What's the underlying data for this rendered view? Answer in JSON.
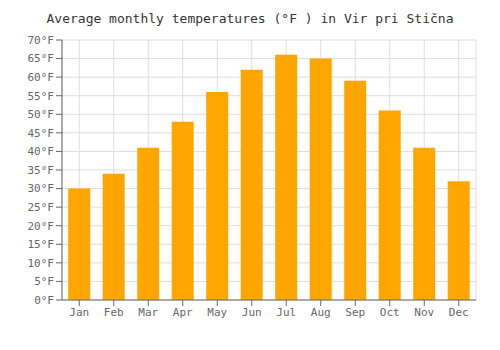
{
  "chart_data": {
    "type": "bar",
    "title": "Average monthly temperatures (°F ) in Vir pri Stična",
    "categories": [
      "Jan",
      "Feb",
      "Mar",
      "Apr",
      "May",
      "Jun",
      "Jul",
      "Aug",
      "Sep",
      "Oct",
      "Nov",
      "Dec"
    ],
    "values": [
      30,
      34,
      41,
      48,
      56,
      62,
      66,
      65,
      59,
      51,
      41,
      32
    ],
    "color": "#FFA500",
    "ylim": [
      0,
      70
    ],
    "yticks": [
      {
        "value": 0,
        "label": "0°F"
      },
      {
        "value": 5,
        "label": "5°F"
      },
      {
        "value": 10,
        "label": "10°F"
      },
      {
        "value": 15,
        "label": "15°F"
      },
      {
        "value": 20,
        "label": "20°F"
      },
      {
        "value": 25,
        "label": "25°F"
      },
      {
        "value": 30,
        "label": "30°F"
      },
      {
        "value": 35,
        "label": "35°F"
      },
      {
        "value": 40,
        "label": "40°F"
      },
      {
        "value": 45,
        "label": "45°F"
      },
      {
        "value": 50,
        "label": "50°F"
      },
      {
        "value": 55,
        "label": "55°F"
      },
      {
        "value": 60,
        "label": "60°F"
      },
      {
        "value": 65,
        "label": "65°F"
      },
      {
        "value": 70,
        "label": "70°F"
      }
    ],
    "grid": true
  }
}
